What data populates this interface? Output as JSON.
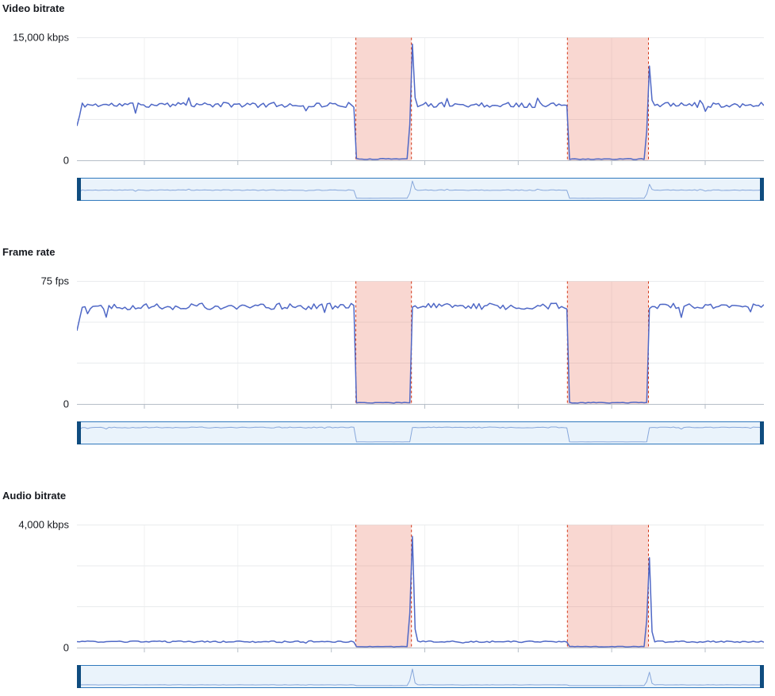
{
  "colors": {
    "line": "#4f68c6",
    "brush_line": "#87a7db",
    "brush_bg": "#eaf3fb",
    "brush_border": "#3079bd",
    "brush_handle": "#0f4c7f",
    "anomaly_fill": "#eb6f5a",
    "anomaly_border": "#d13212",
    "grid": "#e9ebed",
    "grid_vertical": "#f0f1f2",
    "axis": "#b6bec7",
    "text": "#16191f"
  },
  "x_axis_tick_count": 7,
  "chart_data": [
    {
      "type": "line",
      "title": "Video bitrate",
      "y_axis_max_label": "15,000 kbps",
      "y_axis_min_label": "0",
      "unit": "kbps",
      "ylim": [
        0,
        15000
      ],
      "gridline_values": [
        15000,
        10000,
        5000,
        0
      ],
      "baseline": 6800,
      "noise_amplitude": 320,
      "start_value": 4200,
      "dropout_floor": 120,
      "anomaly_regions_pct": [
        [
          40.6,
          48.7
        ],
        [
          71.4,
          83.2
        ]
      ],
      "recovery_spikes": [
        14300,
        11600
      ],
      "legend": "none",
      "seed": 11
    },
    {
      "type": "line",
      "title": "Frame rate",
      "y_axis_max_label": "75 fps",
      "y_axis_min_label": "0",
      "unit": "fps",
      "ylim": [
        0,
        75
      ],
      "gridline_values": [
        75,
        50,
        25,
        0
      ],
      "baseline": 60,
      "noise_amplitude": 2,
      "start_value": 45,
      "dropout_floor": 0.6,
      "anomaly_regions_pct": [
        [
          40.6,
          48.7
        ],
        [
          71.4,
          83.2
        ]
      ],
      "recovery_spikes": [],
      "legend": "none",
      "seed": 22
    },
    {
      "type": "line",
      "title": "Audio bitrate",
      "y_axis_max_label": "4,000 kbps",
      "y_axis_min_label": "0",
      "unit": "kbps",
      "ylim": [
        0,
        4000
      ],
      "gridline_values": [
        4000,
        2667,
        1333,
        0
      ],
      "baseline": 180,
      "noise_amplitude": 25,
      "dropout_floor": 20,
      "anomaly_regions_pct": [
        [
          40.6,
          48.7
        ],
        [
          71.4,
          83.2
        ]
      ],
      "recovery_spikes": [
        3650,
        2950
      ],
      "legend": "none",
      "seed": 33
    }
  ]
}
